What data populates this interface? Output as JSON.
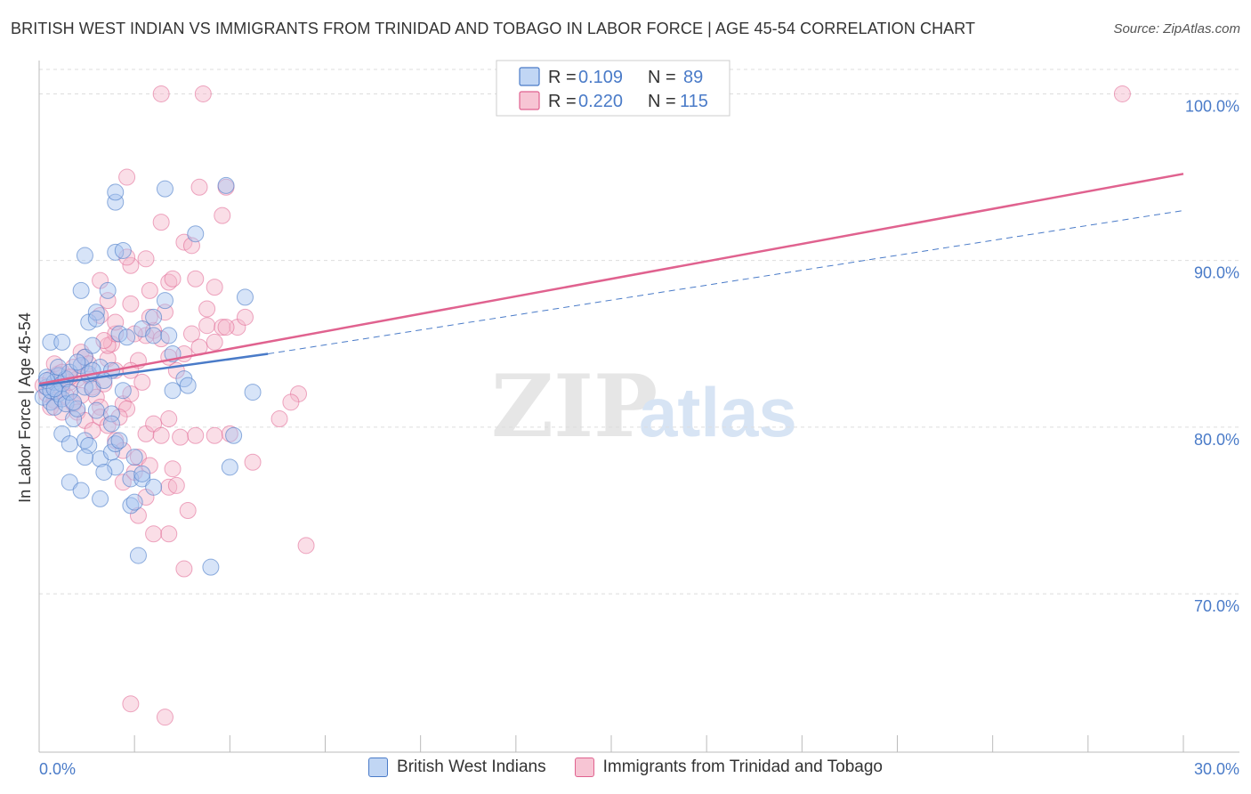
{
  "header": {
    "title": "BRITISH WEST INDIAN VS IMMIGRANTS FROM TRINIDAD AND TOBAGO IN LABOR FORCE | AGE 45-54 CORRELATION CHART",
    "source": "Source: ZipAtlas.com"
  },
  "watermark": {
    "zip": "ZIP",
    "atlas": "atlas"
  },
  "colors": {
    "blue": "#4a7bc8",
    "blue_fill": "#a7c4ef",
    "pink": "#e0628f",
    "pink_fill": "#f5b6c9",
    "grid": "#dddddd"
  },
  "legend": {
    "series1": {
      "r_label": "R =",
      "r_value": "0.109",
      "n_label": "N =",
      "n_value": "89"
    },
    "series2": {
      "r_label": "R =",
      "r_value": "0.220",
      "n_label": "N =",
      "n_value": "115"
    }
  },
  "bottom_legend": [
    "British West Indians",
    "Immigrants from Trinidad and Tobago"
  ],
  "chart_data": {
    "type": "scatter",
    "title": "BRITISH WEST INDIAN VS IMMIGRANTS FROM TRINIDAD AND TOBAGO IN LABOR FORCE | AGE 45-54 CORRELATION CHART",
    "xlabel": "",
    "ylabel": "In Labor Force | Age 45-54",
    "xlim": [
      0,
      30
    ],
    "ylim": [
      60.5,
      102
    ],
    "x_tick_labels": [
      {
        "value": 0,
        "label": "0.0%"
      },
      {
        "value": 30,
        "label": "30.0%"
      }
    ],
    "y_ticks": [
      {
        "value": 70,
        "label": "70.0%"
      },
      {
        "value": 80,
        "label": "80.0%"
      },
      {
        "value": 90,
        "label": "90.0%"
      },
      {
        "value": 100,
        "label": "100.0%"
      }
    ],
    "series": [
      {
        "name": "British West Indians",
        "color": "#4a7bc8",
        "r": 0.109,
        "n": 89,
        "trend": {
          "x": [
            0,
            6
          ],
          "y": [
            82.5,
            84.4
          ],
          "dashed_extension": {
            "x": [
              6,
              30
            ],
            "y": [
              84.4,
              93.0
            ]
          }
        },
        "points": [
          [
            0.1,
            81.8
          ],
          [
            0.2,
            82.4
          ],
          [
            0.2,
            83.0
          ],
          [
            0.3,
            81.5
          ],
          [
            0.3,
            82.2
          ],
          [
            0.4,
            82.7
          ],
          [
            0.4,
            81.2
          ],
          [
            0.5,
            83.1
          ],
          [
            0.5,
            82.0
          ],
          [
            0.6,
            82.6
          ],
          [
            0.6,
            81.7
          ],
          [
            0.7,
            82.9
          ],
          [
            0.7,
            81.4
          ],
          [
            0.8,
            83.3
          ],
          [
            0.8,
            82.1
          ],
          [
            0.9,
            80.5
          ],
          [
            0.3,
            85.1
          ],
          [
            0.6,
            85.1
          ],
          [
            1.1,
            83.7
          ],
          [
            1.2,
            84.2
          ],
          [
            1.4,
            84.9
          ],
          [
            1.0,
            83.9
          ],
          [
            1.3,
            83.2
          ],
          [
            1.6,
            83.6
          ],
          [
            1.2,
            82.4
          ],
          [
            1.4,
            82.3
          ],
          [
            1.5,
            81.0
          ],
          [
            1.9,
            80.8
          ],
          [
            1.0,
            81.1
          ],
          [
            1.2,
            79.2
          ],
          [
            0.6,
            79.6
          ],
          [
            0.8,
            79.0
          ],
          [
            1.3,
            78.9
          ],
          [
            1.6,
            78.1
          ],
          [
            1.9,
            78.5
          ],
          [
            2.0,
            79.0
          ],
          [
            2.1,
            79.2
          ],
          [
            2.0,
            77.6
          ],
          [
            1.2,
            78.2
          ],
          [
            0.8,
            76.7
          ],
          [
            1.1,
            76.2
          ],
          [
            1.7,
            77.3
          ],
          [
            2.5,
            78.2
          ],
          [
            2.4,
            76.9
          ],
          [
            2.7,
            76.9
          ],
          [
            3.0,
            76.4
          ],
          [
            1.6,
            75.7
          ],
          [
            2.4,
            75.3
          ],
          [
            2.5,
            75.5
          ],
          [
            2.6,
            72.3
          ],
          [
            1.1,
            88.2
          ],
          [
            1.3,
            86.3
          ],
          [
            1.5,
            86.9
          ],
          [
            1.8,
            88.2
          ],
          [
            1.5,
            86.5
          ],
          [
            1.4,
            83.4
          ],
          [
            2.1,
            85.6
          ],
          [
            1.9,
            83.4
          ],
          [
            2.7,
            85.9
          ],
          [
            3.0,
            85.5
          ],
          [
            2.3,
            85.4
          ],
          [
            3.4,
            85.5
          ],
          [
            3.0,
            86.6
          ],
          [
            3.3,
            87.6
          ],
          [
            3.5,
            84.4
          ],
          [
            3.8,
            82.9
          ],
          [
            3.5,
            82.2
          ],
          [
            2.2,
            82.2
          ],
          [
            1.9,
            80.2
          ],
          [
            4.1,
            91.6
          ],
          [
            3.3,
            94.3
          ],
          [
            4.9,
            94.5
          ],
          [
            2.0,
            93.5
          ],
          [
            2.0,
            94.1
          ],
          [
            1.2,
            90.3
          ],
          [
            2.0,
            90.5
          ],
          [
            2.2,
            90.6
          ],
          [
            5.4,
            87.8
          ],
          [
            5.6,
            82.1
          ],
          [
            5.1,
            79.5
          ],
          [
            5.0,
            77.6
          ],
          [
            4.5,
            71.6
          ],
          [
            3.9,
            82.5
          ],
          [
            0.2,
            82.8
          ],
          [
            0.4,
            82.3
          ],
          [
            0.9,
            81.5
          ],
          [
            1.7,
            82.8
          ],
          [
            2.7,
            77.2
          ],
          [
            0.5,
            83.6
          ]
        ]
      },
      {
        "name": "Immigrants from Trinidad and Tobago",
        "color": "#e0628f",
        "r": 0.22,
        "n": 115,
        "trend": {
          "x": [
            0,
            30
          ],
          "y": [
            82.6,
            95.2
          ]
        },
        "points": [
          [
            0.1,
            82.5
          ],
          [
            0.2,
            82.0
          ],
          [
            0.3,
            82.9
          ],
          [
            0.4,
            81.6
          ],
          [
            0.5,
            83.2
          ],
          [
            0.6,
            82.3
          ],
          [
            0.7,
            81.9
          ],
          [
            0.8,
            82.7
          ],
          [
            0.9,
            81.4
          ],
          [
            0.4,
            83.8
          ],
          [
            0.6,
            83.3
          ],
          [
            0.9,
            83.6
          ],
          [
            1.0,
            82.9
          ],
          [
            1.1,
            84.5
          ],
          [
            1.2,
            84.2
          ],
          [
            1.3,
            83.1
          ],
          [
            1.4,
            82.4
          ],
          [
            1.5,
            81.8
          ],
          [
            1.6,
            81.2
          ],
          [
            1.7,
            82.6
          ],
          [
            1.8,
            84.1
          ],
          [
            1.9,
            85.0
          ],
          [
            2.0,
            83.4
          ],
          [
            2.2,
            81.4
          ],
          [
            2.4,
            82.0
          ],
          [
            2.6,
            84.0
          ],
          [
            2.8,
            85.5
          ],
          [
            3.0,
            85.8
          ],
          [
            3.2,
            85.3
          ],
          [
            3.4,
            84.2
          ],
          [
            3.6,
            83.4
          ],
          [
            3.8,
            84.4
          ],
          [
            4.0,
            85.6
          ],
          [
            4.2,
            84.8
          ],
          [
            4.4,
            86.1
          ],
          [
            4.6,
            85.1
          ],
          [
            4.8,
            86.0
          ],
          [
            5.2,
            86.0
          ],
          [
            1.0,
            80.9
          ],
          [
            1.2,
            80.4
          ],
          [
            1.4,
            79.8
          ],
          [
            1.6,
            80.6
          ],
          [
            1.8,
            80.1
          ],
          [
            2.0,
            79.2
          ],
          [
            2.2,
            78.6
          ],
          [
            2.6,
            78.2
          ],
          [
            2.8,
            79.6
          ],
          [
            3.0,
            80.2
          ],
          [
            3.2,
            79.5
          ],
          [
            3.4,
            80.5
          ],
          [
            3.7,
            79.4
          ],
          [
            4.1,
            79.5
          ],
          [
            4.6,
            79.5
          ],
          [
            5.0,
            79.6
          ],
          [
            5.6,
            77.9
          ],
          [
            6.3,
            80.5
          ],
          [
            6.8,
            82.0
          ],
          [
            6.6,
            81.5
          ],
          [
            2.2,
            76.7
          ],
          [
            2.5,
            77.3
          ],
          [
            2.8,
            75.8
          ],
          [
            2.6,
            74.7
          ],
          [
            3.0,
            73.6
          ],
          [
            3.4,
            73.6
          ],
          [
            3.4,
            76.4
          ],
          [
            3.6,
            76.5
          ],
          [
            3.9,
            75.0
          ],
          [
            3.8,
            71.5
          ],
          [
            7.0,
            72.9
          ],
          [
            3.5,
            77.5
          ],
          [
            2.9,
            77.7
          ],
          [
            1.8,
            84.9
          ],
          [
            2.4,
            87.4
          ],
          [
            2.9,
            88.2
          ],
          [
            2.9,
            86.6
          ],
          [
            3.3,
            86.9
          ],
          [
            3.4,
            88.7
          ],
          [
            3.5,
            88.9
          ],
          [
            4.1,
            88.9
          ],
          [
            4.4,
            87.1
          ],
          [
            4.6,
            88.4
          ],
          [
            4.9,
            86.0
          ],
          [
            5.4,
            86.6
          ],
          [
            2.4,
            89.7
          ],
          [
            2.3,
            90.2
          ],
          [
            2.8,
            90.1
          ],
          [
            3.8,
            91.1
          ],
          [
            4.0,
            90.9
          ],
          [
            4.8,
            92.7
          ],
          [
            3.2,
            92.3
          ],
          [
            2.3,
            95.0
          ],
          [
            4.2,
            94.4
          ],
          [
            4.9,
            94.4
          ],
          [
            1.6,
            88.8
          ],
          [
            1.8,
            87.6
          ],
          [
            1.6,
            86.7
          ],
          [
            2.0,
            85.6
          ],
          [
            2.0,
            86.3
          ],
          [
            2.5,
            85.6
          ],
          [
            1.7,
            85.2
          ],
          [
            3.2,
            100.0
          ],
          [
            4.3,
            100.0
          ],
          [
            28.4,
            100.0
          ],
          [
            2.4,
            63.4
          ],
          [
            3.3,
            62.6
          ],
          [
            0.3,
            81.2
          ],
          [
            0.5,
            82.2
          ],
          [
            0.8,
            83.0
          ],
          [
            1.3,
            83.8
          ],
          [
            2.4,
            83.4
          ],
          [
            2.7,
            82.7
          ],
          [
            2.3,
            81.1
          ],
          [
            2.1,
            80.6
          ],
          [
            0.6,
            80.9
          ],
          [
            1.1,
            81.9
          ]
        ]
      }
    ]
  }
}
